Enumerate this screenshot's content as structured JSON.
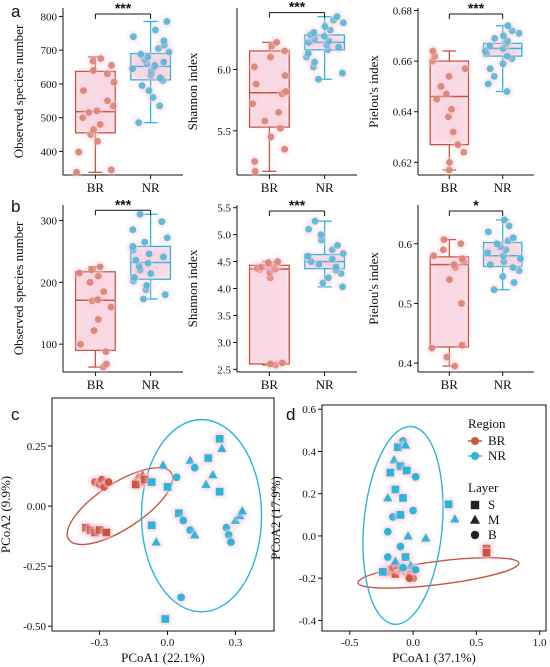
{
  "colors": {
    "BR": "#C8553D",
    "NR": "#2BB5D9",
    "BR_pt": "#D9826E",
    "NR_pt": "#4DB8D9",
    "glow": "#F7C9DA"
  },
  "panel_labels": [
    "a",
    "b",
    "c",
    "d"
  ],
  "chart_data": [
    {
      "type": "box",
      "panel": "a",
      "title": "",
      "xlabel": "",
      "ylabel": "Observed species number",
      "categories": [
        "BR",
        "NR"
      ],
      "ylim": [
        330,
        825
      ],
      "yticks": [
        400,
        500,
        600,
        700,
        800
      ],
      "significance": "***",
      "series": [
        {
          "name": "BR",
          "min": 338,
          "q1": 455,
          "median": 518,
          "q3": 637,
          "max": 680,
          "points": [
            338,
            345,
            398,
            430,
            450,
            465,
            480,
            500,
            515,
            520,
            535,
            550,
            580,
            605,
            630,
            640,
            655,
            668,
            675
          ]
        },
        {
          "name": "NR",
          "min": 485,
          "q1": 612,
          "median": 652,
          "q3": 690,
          "max": 785,
          "points": [
            485,
            535,
            560,
            580,
            595,
            610,
            618,
            625,
            632,
            640,
            645,
            650,
            655,
            660,
            665,
            672,
            680,
            688,
            695,
            705,
            715,
            728,
            740,
            760,
            785
          ]
        }
      ]
    },
    {
      "type": "box",
      "panel": "a",
      "title": "",
      "xlabel": "",
      "ylabel": "Shannon index",
      "categories": [
        "BR",
        "NR"
      ],
      "ylim": [
        5.14,
        6.5
      ],
      "yticks": [
        5.5,
        6.0
      ],
      "significance": "***",
      "series": [
        {
          "name": "BR",
          "min": 5.17,
          "q1": 5.53,
          "median": 5.81,
          "q3": 6.15,
          "max": 6.22,
          "points": [
            5.17,
            5.25,
            5.35,
            5.45,
            5.52,
            5.58,
            5.65,
            5.72,
            5.8,
            5.82,
            5.88,
            5.95,
            6.02,
            6.1,
            6.15,
            6.19,
            6.22
          ]
        },
        {
          "name": "NR",
          "min": 5.92,
          "q1": 6.16,
          "median": 6.22,
          "q3": 6.28,
          "max": 6.43,
          "points": [
            5.92,
            5.97,
            6.02,
            6.06,
            6.1,
            6.13,
            6.16,
            6.18,
            6.2,
            6.22,
            6.23,
            6.25,
            6.27,
            6.28,
            6.3,
            6.32,
            6.35,
            6.38,
            6.4,
            6.43
          ]
        }
      ]
    },
    {
      "type": "box",
      "panel": "a",
      "title": "",
      "xlabel": "",
      "ylabel": "Pielou's index",
      "categories": [
        "BR",
        "NR"
      ],
      "ylim": [
        0.615,
        0.681
      ],
      "yticks": [
        0.62,
        0.64,
        0.66,
        0.68
      ],
      "significance": "***",
      "series": [
        {
          "name": "BR",
          "min": 0.617,
          "q1": 0.627,
          "median": 0.646,
          "q3": 0.66,
          "max": 0.664,
          "points": [
            0.617,
            0.62,
            0.624,
            0.627,
            0.632,
            0.638,
            0.641,
            0.645,
            0.647,
            0.65,
            0.654,
            0.657,
            0.66,
            0.662,
            0.664
          ]
        },
        {
          "name": "NR",
          "min": 0.648,
          "q1": 0.662,
          "median": 0.665,
          "q3": 0.667,
          "max": 0.674,
          "points": [
            0.648,
            0.651,
            0.654,
            0.657,
            0.659,
            0.661,
            0.662,
            0.663,
            0.664,
            0.665,
            0.666,
            0.667,
            0.668,
            0.669,
            0.67,
            0.671,
            0.672,
            0.674
          ]
        }
      ]
    },
    {
      "type": "box",
      "panel": "b",
      "title": "",
      "xlabel": "",
      "ylabel": "Observed species number",
      "categories": [
        "BR",
        "NR"
      ],
      "ylim": [
        55,
        325
      ],
      "yticks": [
        100,
        200,
        300
      ],
      "significance": "***",
      "series": [
        {
          "name": "BR",
          "min": 63,
          "q1": 90,
          "median": 171,
          "q3": 217,
          "max": 225,
          "points": [
            63,
            68,
            88,
            100,
            122,
            140,
            160,
            170,
            172,
            185,
            200,
            210,
            215,
            220,
            225
          ]
        },
        {
          "name": "NR",
          "min": 173,
          "q1": 205,
          "median": 232,
          "q3": 258,
          "max": 310,
          "points": [
            173,
            180,
            188,
            195,
            202,
            208,
            214,
            220,
            226,
            231,
            236,
            241,
            246,
            252,
            258,
            265,
            272,
            285,
            298,
            310
          ]
        }
      ]
    },
    {
      "type": "box",
      "panel": "b",
      "title": "",
      "xlabel": "",
      "ylabel": "Shannon index",
      "categories": [
        "BR",
        "NR"
      ],
      "ylim": [
        2.45,
        5.55
      ],
      "yticks": [
        2.5,
        3.0,
        3.5,
        4.0,
        4.5,
        5.0,
        5.5
      ],
      "significance": "***",
      "series": [
        {
          "name": "BR",
          "min": 2.58,
          "q1": 2.6,
          "median": 4.36,
          "q3": 4.43,
          "max": 4.5,
          "points": [
            2.58,
            2.6,
            2.62,
            4.2,
            4.3,
            4.35,
            4.36,
            4.38,
            4.4,
            4.42,
            4.45,
            4.48,
            4.5
          ]
        },
        {
          "name": "NR",
          "min": 4.03,
          "q1": 4.37,
          "median": 4.5,
          "q3": 4.63,
          "max": 5.25,
          "points": [
            4.03,
            4.1,
            4.2,
            4.28,
            4.34,
            4.4,
            4.45,
            4.5,
            4.55,
            4.6,
            4.65,
            4.72,
            4.8,
            4.9,
            5.0,
            5.1,
            5.25
          ]
        }
      ]
    },
    {
      "type": "box",
      "panel": "b",
      "title": "",
      "xlabel": "",
      "ylabel": "Pielou's index",
      "categories": [
        "BR",
        "NR"
      ],
      "ylim": [
        0.385,
        0.665
      ],
      "yticks": [
        0.4,
        0.5,
        0.6
      ],
      "significance": "*",
      "series": [
        {
          "name": "BR",
          "min": 0.395,
          "q1": 0.427,
          "median": 0.565,
          "q3": 0.578,
          "max": 0.607,
          "points": [
            0.395,
            0.41,
            0.425,
            0.43,
            0.5,
            0.54,
            0.56,
            0.565,
            0.57,
            0.575,
            0.58,
            0.59,
            0.6,
            0.607
          ]
        },
        {
          "name": "NR",
          "min": 0.523,
          "q1": 0.562,
          "median": 0.58,
          "q3": 0.602,
          "max": 0.64,
          "points": [
            0.523,
            0.535,
            0.545,
            0.555,
            0.56,
            0.565,
            0.57,
            0.575,
            0.58,
            0.585,
            0.59,
            0.595,
            0.6,
            0.605,
            0.61,
            0.62,
            0.63,
            0.64
          ]
        }
      ]
    },
    {
      "type": "scatter",
      "panel": "c",
      "title": "",
      "xlabel": "PCoA1 (22.1%)",
      "ylabel": "PCoA2 (9.9%)",
      "xlim": [
        -0.51,
        0.47
      ],
      "ylim": [
        -0.52,
        0.45
      ],
      "xticks": [
        -0.3,
        0.0,
        0.3
      ],
      "yticks": [
        -0.5,
        -0.25,
        0.0,
        0.25
      ],
      "ellipses": [
        {
          "name": "BR",
          "cx": -0.21,
          "cy": 0.0,
          "rx": 0.27,
          "ry": 0.095,
          "angle_deg": 33
        },
        {
          "name": "NR",
          "cx": 0.15,
          "cy": -0.04,
          "rx": 0.265,
          "ry": 0.4,
          "angle_deg": 0
        }
      ],
      "series": [
        {
          "name": "BR",
          "points": [
            {
              "x": -0.36,
              "y": -0.09,
              "shape": "square"
            },
            {
              "x": -0.34,
              "y": -0.1,
              "shape": "square"
            },
            {
              "x": -0.32,
              "y": -0.11,
              "shape": "square"
            },
            {
              "x": -0.3,
              "y": -0.1,
              "shape": "square"
            },
            {
              "x": -0.27,
              "y": -0.11,
              "shape": "square"
            },
            {
              "x": -0.32,
              "y": 0.1,
              "shape": "circle"
            },
            {
              "x": -0.3,
              "y": 0.09,
              "shape": "circle"
            },
            {
              "x": -0.29,
              "y": 0.11,
              "shape": "circle"
            },
            {
              "x": -0.28,
              "y": 0.08,
              "shape": "circle"
            },
            {
              "x": -0.26,
              "y": 0.1,
              "shape": "circle"
            },
            {
              "x": -0.13,
              "y": 0.12,
              "shape": "triangle"
            },
            {
              "x": -0.12,
              "y": 0.1,
              "shape": "triangle"
            },
            {
              "x": -0.11,
              "y": 0.13,
              "shape": "triangle"
            },
            {
              "x": -0.14,
              "y": 0.09,
              "shape": "square"
            },
            {
              "x": -0.1,
              "y": 0.11,
              "shape": "square"
            }
          ]
        },
        {
          "name": "NR",
          "points": [
            {
              "x": -0.07,
              "y": 0.1,
              "shape": "square"
            },
            {
              "x": 0.0,
              "y": 0.08,
              "shape": "square"
            },
            {
              "x": -0.02,
              "y": 0.17,
              "shape": "triangle"
            },
            {
              "x": 0.04,
              "y": 0.12,
              "shape": "circle"
            },
            {
              "x": 0.1,
              "y": 0.19,
              "shape": "triangle"
            },
            {
              "x": 0.12,
              "y": 0.16,
              "shape": "circle"
            },
            {
              "x": 0.17,
              "y": 0.09,
              "shape": "triangle"
            },
            {
              "x": 0.18,
              "y": 0.2,
              "shape": "square"
            },
            {
              "x": 0.2,
              "y": 0.13,
              "shape": "triangle"
            },
            {
              "x": 0.23,
              "y": 0.28,
              "shape": "square"
            },
            {
              "x": 0.24,
              "y": 0.24,
              "shape": "triangle"
            },
            {
              "x": 0.23,
              "y": 0.06,
              "shape": "square"
            },
            {
              "x": 0.05,
              "y": -0.03,
              "shape": "square"
            },
            {
              "x": 0.07,
              "y": -0.06,
              "shape": "circle"
            },
            {
              "x": 0.1,
              "y": -0.1,
              "shape": "circle"
            },
            {
              "x": 0.12,
              "y": -0.12,
              "shape": "triangle"
            },
            {
              "x": -0.07,
              "y": -0.08,
              "shape": "square"
            },
            {
              "x": -0.05,
              "y": -0.15,
              "shape": "triangle"
            },
            {
              "x": 0.26,
              "y": -0.09,
              "shape": "circle"
            },
            {
              "x": 0.27,
              "y": -0.12,
              "shape": "circle"
            },
            {
              "x": 0.28,
              "y": -0.15,
              "shape": "circle"
            },
            {
              "x": 0.3,
              "y": -0.06,
              "shape": "triangle"
            },
            {
              "x": 0.32,
              "y": -0.04,
              "shape": "triangle"
            },
            {
              "x": 0.33,
              "y": -0.02,
              "shape": "triangle"
            },
            {
              "x": -0.01,
              "y": -0.47,
              "shape": "square"
            },
            {
              "x": 0.06,
              "y": -0.38,
              "shape": "circle"
            }
          ]
        }
      ]
    },
    {
      "type": "scatter",
      "panel": "d",
      "title": "",
      "xlabel": "PCoA1 (37.1%)",
      "ylabel": "PCoA2 (17.9%)",
      "xlim": [
        -0.72,
        1.05
      ],
      "ylim": [
        -0.45,
        0.62
      ],
      "xticks": [
        -0.5,
        0.0,
        0.5,
        1.0
      ],
      "yticks": [
        -0.4,
        -0.2,
        0.0,
        0.2,
        0.4,
        0.6
      ],
      "legend": {
        "region_title": "Region",
        "region_items": [
          "BR",
          "NR"
        ],
        "layer_title": "Layer",
        "layer_items": [
          "S",
          "M",
          "B"
        ]
      },
      "ellipses": [
        {
          "name": "BR",
          "cx": 0.2,
          "cy": -0.175,
          "rx": 0.64,
          "ry": 0.055,
          "angle_deg": 7
        },
        {
          "name": "NR",
          "cx": -0.08,
          "cy": 0.05,
          "rx": 0.31,
          "ry": 0.47,
          "angle_deg": -5
        }
      ],
      "series": [
        {
          "name": "BR",
          "points": [
            {
              "x": -0.2,
              "y": -0.17,
              "shape": "square"
            },
            {
              "x": -0.17,
              "y": -0.16,
              "shape": "square"
            },
            {
              "x": -0.14,
              "y": -0.18,
              "shape": "square"
            },
            {
              "x": -0.16,
              "y": -0.15,
              "shape": "circle"
            },
            {
              "x": -0.1,
              "y": -0.16,
              "shape": "circle"
            },
            {
              "x": -0.06,
              "y": -0.17,
              "shape": "circle"
            },
            {
              "x": -0.04,
              "y": -0.16,
              "shape": "circle"
            },
            {
              "x": -0.12,
              "y": -0.14,
              "shape": "triangle"
            },
            {
              "x": -0.08,
              "y": -0.15,
              "shape": "triangle"
            },
            {
              "x": -0.02,
              "y": -0.18,
              "shape": "circle"
            },
            {
              "x": 0.0,
              "y": -0.2,
              "shape": "circle"
            },
            {
              "x": -0.03,
              "y": -0.2,
              "shape": "circle"
            },
            {
              "x": 0.58,
              "y": -0.06,
              "shape": "square"
            },
            {
              "x": 0.58,
              "y": -0.08,
              "shape": "square"
            }
          ]
        },
        {
          "name": "NR",
          "points": [
            {
              "x": -0.08,
              "y": 0.45,
              "shape": "circle"
            },
            {
              "x": -0.12,
              "y": 0.42,
              "shape": "square"
            },
            {
              "x": -0.06,
              "y": 0.43,
              "shape": "triangle"
            },
            {
              "x": -0.15,
              "y": 0.36,
              "shape": "triangle"
            },
            {
              "x": -0.1,
              "y": 0.33,
              "shape": "square"
            },
            {
              "x": -0.18,
              "y": 0.3,
              "shape": "square"
            },
            {
              "x": -0.05,
              "y": 0.31,
              "shape": "square"
            },
            {
              "x": 0.02,
              "y": 0.28,
              "shape": "circle"
            },
            {
              "x": -0.14,
              "y": 0.22,
              "shape": "square"
            },
            {
              "x": -0.2,
              "y": 0.18,
              "shape": "triangle"
            },
            {
              "x": -0.08,
              "y": 0.18,
              "shape": "square"
            },
            {
              "x": 0.0,
              "y": 0.12,
              "shape": "circle"
            },
            {
              "x": -0.16,
              "y": 0.09,
              "shape": "circle"
            },
            {
              "x": -0.1,
              "y": 0.1,
              "shape": "square"
            },
            {
              "x": 0.28,
              "y": 0.15,
              "shape": "square"
            },
            {
              "x": 0.33,
              "y": 0.08,
              "shape": "triangle"
            },
            {
              "x": -0.2,
              "y": 0.02,
              "shape": "circle"
            },
            {
              "x": -0.04,
              "y": 0.0,
              "shape": "triangle"
            },
            {
              "x": 0.1,
              "y": -0.01,
              "shape": "triangle"
            },
            {
              "x": -0.1,
              "y": -0.05,
              "shape": "circle"
            },
            {
              "x": -0.2,
              "y": -0.1,
              "shape": "circle"
            },
            {
              "x": -0.14,
              "y": -0.12,
              "shape": "triangle"
            },
            {
              "x": -0.06,
              "y": -0.1,
              "shape": "square"
            },
            {
              "x": -0.02,
              "y": -0.14,
              "shape": "triangle"
            },
            {
              "x": -0.08,
              "y": -0.15,
              "shape": "circle"
            },
            {
              "x": 0.02,
              "y": -0.16,
              "shape": "circle"
            },
            {
              "x": -0.24,
              "y": -0.17,
              "shape": "square"
            }
          ]
        }
      ]
    }
  ]
}
